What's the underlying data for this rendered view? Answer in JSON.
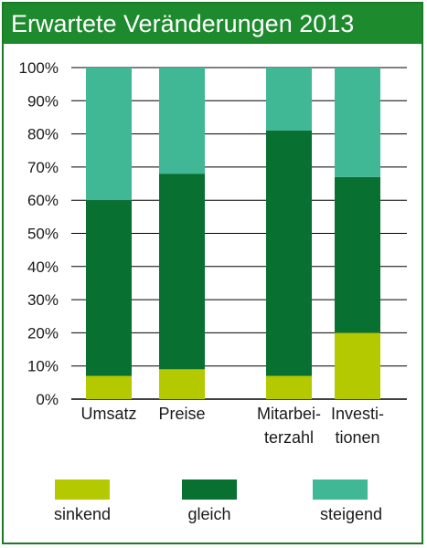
{
  "chart_data": {
    "type": "bar",
    "stacked": true,
    "title": "Erwartete Veränderungen 2013",
    "categories": [
      [
        "Umsatz"
      ],
      [
        "Preise"
      ],
      [
        "Mitarbei-",
        "terzahl"
      ],
      [
        "Investi-",
        "tionen"
      ]
    ],
    "series": [
      {
        "name": "sinkend",
        "color": "#b5c900",
        "values": [
          7,
          9,
          7,
          20
        ]
      },
      {
        "name": "gleich",
        "color": "#087030",
        "values": [
          53,
          59,
          74,
          47
        ]
      },
      {
        "name": "steigend",
        "color": "#40b896",
        "values": [
          40,
          32,
          19,
          33
        ]
      }
    ],
    "yticks": [
      "0%",
      "10%",
      "20%",
      "30%",
      "40%",
      "50%",
      "60%",
      "70%",
      "80%",
      "90%",
      "100%"
    ],
    "ylim": [
      0,
      100
    ],
    "grid": true,
    "legend_position": "bottom"
  }
}
